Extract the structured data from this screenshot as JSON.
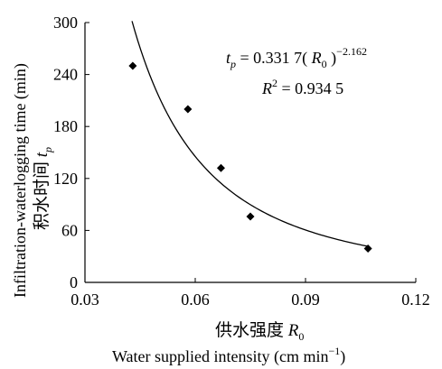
{
  "chart_data": {
    "type": "scatter",
    "x": [
      0.043,
      0.058,
      0.067,
      0.075,
      0.107
    ],
    "y": [
      250,
      200,
      132,
      76,
      39
    ],
    "xlim": [
      0.03,
      0.12
    ],
    "ylim": [
      0,
      300
    ],
    "x_ticks": [
      "0.03",
      "0.06",
      "0.09",
      "0.12"
    ],
    "y_ticks": [
      "0",
      "60",
      "120",
      "180",
      "240",
      "300"
    ],
    "xlabel_cn_text": "供水强度 ",
    "xlabel_cn_symbol": "R",
    "xlabel_cn_sub": "0",
    "xlabel_en_text": "Water supplied intensity   (cm min",
    "xlabel_en_sup": "−1",
    "xlabel_en_close": ")",
    "ylabel_en": "Infiltration-waterlogging time (min)",
    "ylabel_cn": "积水时间 ",
    "ylabel_symbol": "t",
    "ylabel_sub": "p",
    "fit": {
      "coefficient": 0.3317,
      "exponent": -2.162,
      "x_start": 0.0428,
      "x_end": 0.107
    },
    "equation": {
      "lhs": "t",
      "lhs_sub": "p",
      "rhs_a": " = 0.331 7( ",
      "rhs_var": "R",
      "rhs_var_sub": "0",
      "rhs_close": " )",
      "exponent": "−2.162"
    },
    "r2": {
      "symbol": "R",
      "sup": "2",
      "value": " = 0.934 5"
    },
    "marker": "diamond",
    "grid": false
  }
}
